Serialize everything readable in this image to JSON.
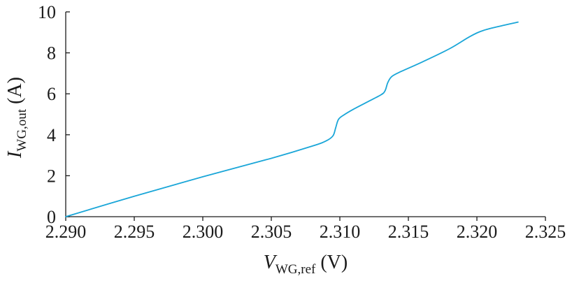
{
  "chart_data": {
    "type": "line",
    "xlabel": {
      "symbol": "V",
      "subscript": "WG,ref",
      "unit": "(V)"
    },
    "ylabel": {
      "symbol": "I",
      "subscript": "WG,out",
      "unit": "(A)"
    },
    "xlim": [
      2.29,
      2.325
    ],
    "ylim": [
      0,
      10
    ],
    "x_ticks": [
      "2.290",
      "2.295",
      "2.300",
      "2.305",
      "2.310",
      "2.315",
      "2.320",
      "2.325"
    ],
    "y_ticks": [
      "0",
      "2",
      "4",
      "6",
      "8",
      "10"
    ],
    "grid": false,
    "series": [
      {
        "color": "#1aa6d8",
        "points": [
          [
            2.29,
            0.0
          ],
          [
            2.295,
            1.0
          ],
          [
            2.3,
            1.95
          ],
          [
            2.305,
            2.85
          ],
          [
            2.308,
            3.45
          ],
          [
            2.309,
            3.7
          ],
          [
            2.3095,
            3.95
          ],
          [
            2.3097,
            4.35
          ],
          [
            2.3099,
            4.75
          ],
          [
            2.3103,
            4.97
          ],
          [
            2.311,
            5.25
          ],
          [
            2.312,
            5.6
          ],
          [
            2.313,
            5.95
          ],
          [
            2.3133,
            6.15
          ],
          [
            2.3135,
            6.55
          ],
          [
            2.3138,
            6.85
          ],
          [
            2.3145,
            7.1
          ],
          [
            2.316,
            7.55
          ],
          [
            2.318,
            8.2
          ],
          [
            2.3195,
            8.8
          ],
          [
            2.3205,
            9.1
          ],
          [
            2.322,
            9.35
          ],
          [
            2.323,
            9.5
          ]
        ]
      }
    ]
  }
}
